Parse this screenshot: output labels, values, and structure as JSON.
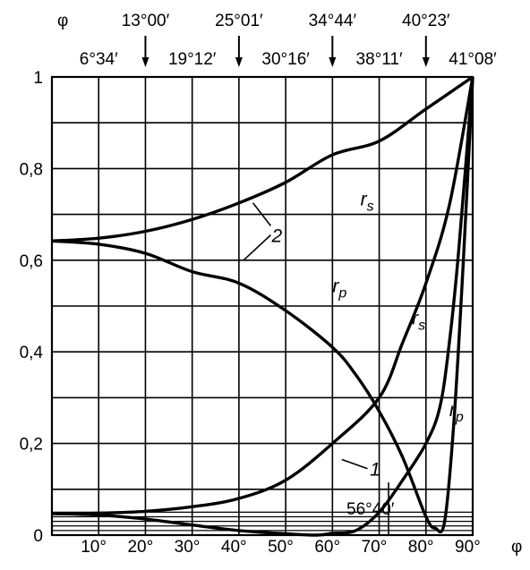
{
  "chart_data": {
    "type": "line",
    "title": "",
    "xlabel": "φ",
    "ylabel": "",
    "xlim": [
      0,
      90
    ],
    "ylim": [
      0,
      1
    ],
    "grid": true,
    "x_tick_labels": [
      "10°",
      "20°",
      "30°",
      "40°",
      "50°",
      "60°",
      "70°",
      "80°",
      "90°"
    ],
    "x_tick_values": [
      10,
      20,
      30,
      40,
      50,
      60,
      70,
      80,
      90
    ],
    "y_tick_labels": [
      "0",
      "0,2",
      "0,4",
      "0,6",
      "0,8",
      "1"
    ],
    "y_tick_values": [
      0,
      0.2,
      0.4,
      0.6,
      0.8,
      1.0
    ],
    "top_axis": {
      "symbol": "φ",
      "row1": [
        {
          "label": "13°00′",
          "x": 20
        },
        {
          "label": "25°01′",
          "x": 40
        },
        {
          "label": "34°44′",
          "x": 60
        },
        {
          "label": "40°23′",
          "x": 80
        }
      ],
      "row2": [
        {
          "label": "6°34′",
          "x": 10
        },
        {
          "label": "19°12′",
          "x": 30
        },
        {
          "label": "30°16′",
          "x": 50
        },
        {
          "label": "38°11′",
          "x": 70
        },
        {
          "label": "41°08′",
          "x": 90
        }
      ]
    },
    "series": [
      {
        "name": "rs",
        "group": "2",
        "x": [
          0,
          10,
          20,
          30,
          40,
          50,
          60,
          70,
          80,
          90
        ],
        "y": [
          0.642,
          0.648,
          0.663,
          0.689,
          0.725,
          0.77,
          0.83,
          0.86,
          0.93,
          1.0
        ]
      },
      {
        "name": "rp",
        "group": "2",
        "x": [
          0,
          10,
          20,
          30,
          40,
          50,
          60,
          65,
          70,
          75,
          80,
          82,
          84,
          86,
          88,
          90
        ],
        "y": [
          0.642,
          0.635,
          0.615,
          0.575,
          0.55,
          0.49,
          0.41,
          0.35,
          0.27,
          0.17,
          0.04,
          0.015,
          0.03,
          0.25,
          0.6,
          1.0
        ]
      },
      {
        "name": "rs",
        "group": "1",
        "x": [
          0,
          10,
          20,
          30,
          40,
          50,
          60,
          70,
          75,
          80,
          85,
          90
        ],
        "y": [
          0.047,
          0.048,
          0.052,
          0.062,
          0.08,
          0.12,
          0.2,
          0.3,
          0.42,
          0.55,
          0.72,
          1.0
        ]
      },
      {
        "name": "rp",
        "group": "1",
        "x": [
          0,
          10,
          20,
          30,
          40,
          50,
          56.7,
          60,
          65,
          70,
          75,
          80,
          83,
          85,
          87,
          90
        ],
        "y": [
          0.047,
          0.044,
          0.035,
          0.022,
          0.01,
          0.003,
          0.0,
          0.004,
          0.01,
          0.05,
          0.12,
          0.2,
          0.28,
          0.42,
          0.62,
          1.0
        ]
      }
    ],
    "annotations": [
      {
        "text": "rs",
        "x": 66,
        "y": 0.72,
        "curve_group": "2"
      },
      {
        "text": "2",
        "x": 47,
        "y": 0.64
      },
      {
        "text": "rp",
        "x": 60,
        "y": 0.53,
        "curve_group": "2"
      },
      {
        "text": "rs",
        "x": 77,
        "y": 0.46,
        "curve_group": "1"
      },
      {
        "text": "rp",
        "x": 85,
        "y": 0.26,
        "curve_group": "1"
      },
      {
        "text": "1",
        "x": 68,
        "y": 0.13
      },
      {
        "text": "56°40′",
        "x": 63,
        "y": 0.045
      }
    ]
  }
}
